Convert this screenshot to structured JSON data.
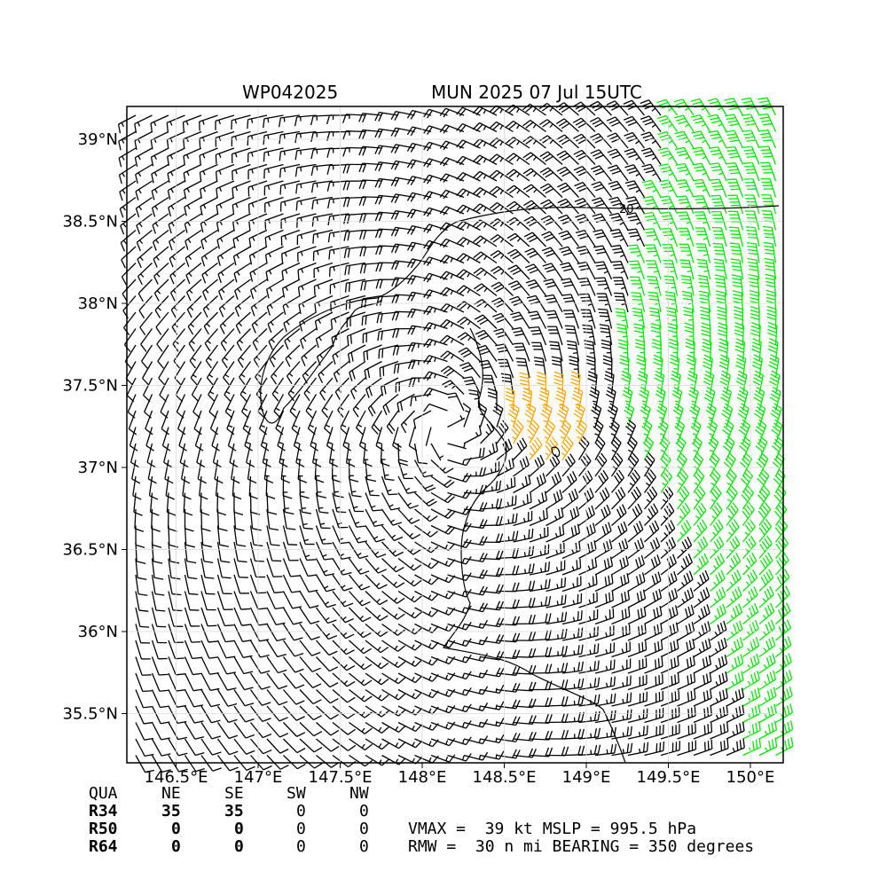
{
  "header": {
    "storm_id": "WP042025",
    "subtitle": "MUN 2025 07 Jul 15UTC"
  },
  "chart_data": {
    "type": "wind_barb_map",
    "xlim": [
      146.2,
      150.2
    ],
    "ylim": [
      35.2,
      39.2
    ],
    "x_ticks": [
      146.5,
      147.0,
      147.5,
      148.0,
      148.5,
      149.0,
      149.5,
      150.0
    ],
    "x_tick_labels": [
      "146.5°E",
      "147°E",
      "147.5°E",
      "148°E",
      "148.5°E",
      "149°E",
      "149.5°E",
      "150°E"
    ],
    "y_ticks": [
      35.5,
      36.0,
      36.5,
      37.0,
      37.5,
      38.0,
      38.5,
      39.0
    ],
    "y_tick_labels": [
      "35.5°N",
      "36°N",
      "36.5°N",
      "37°N",
      "37.5°N",
      "38°N",
      "38.5°N",
      "39°N"
    ],
    "grid": true,
    "center": [
      148.15,
      37.25
    ],
    "rmw_nmi": 30,
    "vmax_kt": 39,
    "barb_colors": {
      "below_34kt": "#000000",
      "34_to_49kt": "#00ee00",
      "50kt_plus": "#ffa500"
    },
    "contour_label": "20",
    "wind_radii": {
      "header": [
        "QUA",
        "NE",
        "SE",
        "SW",
        "NW"
      ],
      "rows": [
        {
          "label": "R34",
          "values": [
            "35",
            "35",
            "0",
            "0"
          ]
        },
        {
          "label": "R50",
          "values": [
            "0",
            "0",
            "0",
            "0"
          ]
        },
        {
          "label": "R64",
          "values": [
            "0",
            "0",
            "0",
            "0"
          ]
        }
      ]
    }
  },
  "info": {
    "line1": "VMAX =  39 kt MSLP = 995.5 hPa",
    "line2": "RMW =  30 n mi BEARING = 350 degrees"
  }
}
